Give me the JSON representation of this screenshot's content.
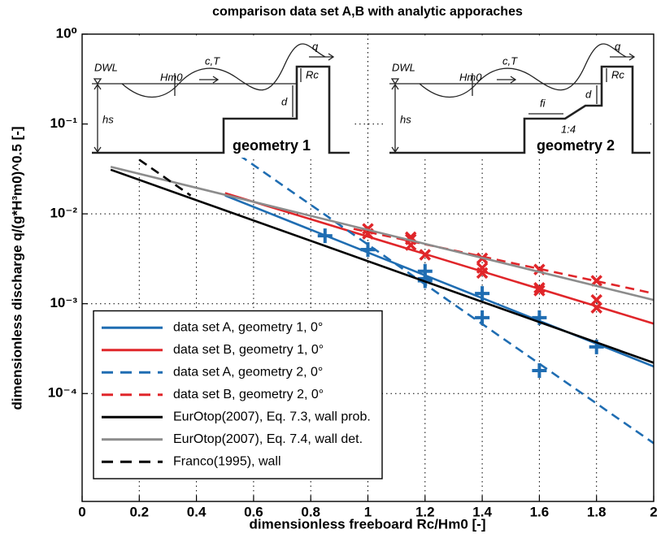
{
  "chart_data": {
    "type": "line",
    "title": "comparison data set A,B with analytic apporaches",
    "xlabel": "dimensionless freeboard Rc/Hm0 [-]",
    "ylabel": "dimensionless discharge q/(g*H³m0)^0.5 [-]",
    "xlim": [
      0,
      2
    ],
    "xticks": [
      0,
      0.2,
      0.4,
      0.6,
      0.8,
      1,
      1.2,
      1.4,
      1.6,
      1.8,
      2
    ],
    "ylim": [
      6.3e-06,
      1
    ],
    "log_y": true,
    "yticks": [
      {
        "value": 1,
        "label": "10⁰"
      },
      {
        "value": 0.1,
        "label": "10⁻¹"
      },
      {
        "value": 0.01,
        "label": "10⁻²"
      },
      {
        "value": 0.001,
        "label": "10⁻³"
      },
      {
        "value": 0.0001,
        "label": "10⁻⁴"
      }
    ],
    "grid": true,
    "legend": "lower left",
    "series": [
      {
        "name": "data set A, geometry 1, 0°",
        "color": "#1f6db2",
        "dashed": false,
        "x": [
          0.5,
          2
        ],
        "values": [
          0.016,
          0.0002
        ],
        "marker": "+",
        "marker_x": [
          0.85,
          1.0,
          1.2,
          1.2,
          1.4,
          1.6,
          1.8
        ],
        "marker_values": [
          0.0057,
          0.004,
          0.0019,
          0.0023,
          0.0013,
          0.0007,
          0.00033
        ]
      },
      {
        "name": "data set B, geometry 1, 0°",
        "color": "#e0262a",
        "dashed": false,
        "x": [
          0.5,
          2
        ],
        "values": [
          0.017,
          0.0006
        ],
        "marker": "x",
        "marker_x": [
          1.0,
          1.0,
          1.15,
          1.15,
          1.2,
          1.4,
          1.4,
          1.6,
          1.6,
          1.8,
          1.8
        ],
        "marker_values": [
          0.006,
          0.0068,
          0.0045,
          0.0055,
          0.0035,
          0.0025,
          0.0022,
          0.0015,
          0.0014,
          0.0011,
          0.0009
        ]
      },
      {
        "name": "data set A, geometry 2, 0°",
        "color": "#1f6db2",
        "dashed": true,
        "x": [
          0.55,
          2
        ],
        "values": [
          0.045,
          2.8e-05
        ],
        "marker": "+",
        "marker_x": [
          1.0,
          1.2,
          1.4,
          1.6
        ],
        "marker_values": [
          0.004,
          0.0018,
          0.0007,
          0.00018
        ]
      },
      {
        "name": "data set B, geometry 2, 0°",
        "color": "#e0262a",
        "dashed": true,
        "x": [
          0.95,
          2
        ],
        "values": [
          0.0068,
          0.0013
        ],
        "marker": "x",
        "marker_x": [
          1.15,
          1.4,
          1.6,
          1.8
        ],
        "marker_values": [
          0.0052,
          0.0032,
          0.0024,
          0.0018
        ]
      },
      {
        "name": "EurOtop(2007), Eq. 7.3, wall prob.",
        "color": "#000000",
        "dashed": false,
        "x": [
          0.1,
          2
        ],
        "values": [
          0.031,
          0.00022
        ]
      },
      {
        "name": "EurOtop(2007), Eq. 7.4, wall det.",
        "color": "#8c8c8c",
        "dashed": false,
        "x": [
          0.1,
          2
        ],
        "values": [
          0.0334,
          0.0011
        ]
      },
      {
        "name": "Franco(1995), wall",
        "color": "#000000",
        "dashed": true,
        "x": [
          0.2,
          0.38
        ],
        "values": [
          0.04,
          0.016
        ]
      }
    ]
  },
  "insets": [
    {
      "labels": [
        "DWL",
        "Hm0",
        "c,T",
        "q",
        "Rc",
        "d",
        "hs",
        "geometry 1"
      ]
    },
    {
      "labels": [
        "DWL",
        "Hm0",
        "c,T",
        "q",
        "Rc",
        "d",
        "hs",
        "fi",
        "1:4",
        "geometry 2"
      ]
    }
  ]
}
